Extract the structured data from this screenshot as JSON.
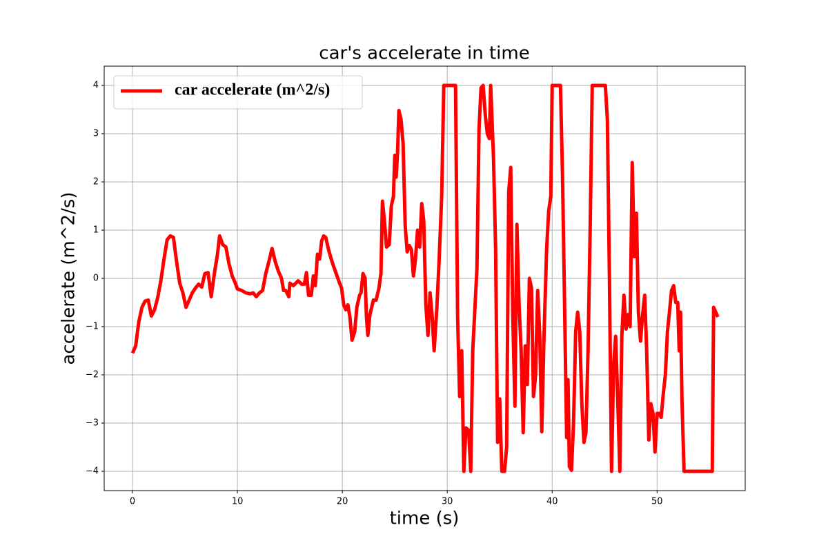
{
  "chart_data": {
    "type": "line",
    "title": "car's accelerate in time",
    "xlabel": "time (s)",
    "ylabel": "accelerate (m^2/s)",
    "x": [
      0,
      0.3,
      0.6,
      0.9,
      1.2,
      1.5,
      1.8,
      2.1,
      2.4,
      2.7,
      3.0,
      3.3,
      3.6,
      3.9,
      4.2,
      4.5,
      4.8,
      5.1,
      5.4,
      5.7,
      6.0,
      6.3,
      6.6,
      6.9,
      7.2,
      7.5,
      7.8,
      8.1,
      8.3,
      8.6,
      8.9,
      9.2,
      9.5,
      9.8,
      10.0,
      10.4,
      10.8,
      11.2,
      11.5,
      11.8,
      12.1,
      12.4,
      12.7,
      13.0,
      13.3,
      13.6,
      13.9,
      14.2,
      14.4,
      14.6,
      14.9,
      15.0,
      15.33,
      15.79,
      16.12,
      16.38,
      16.58,
      16.78,
      17.04,
      17.24,
      17.43,
      17.63,
      17.83,
      18.03,
      18.22,
      18.42,
      18.68,
      19.01,
      19.41,
      19.74,
      19.93,
      20.13,
      20.33,
      20.53,
      20.72,
      20.92,
      21.18,
      21.38,
      21.64,
      21.78,
      21.97,
      22.17,
      22.3,
      22.43,
      22.63,
      22.96,
      23.22,
      23.49,
      23.68,
      23.82,
      24.01,
      24.21,
      24.47,
      24.67,
      24.87,
      25.0,
      25.13,
      25.26,
      25.39,
      25.59,
      25.79,
      25.99,
      26.18,
      26.38,
      26.58,
      26.78,
      26.97,
      27.17,
      27.37,
      27.57,
      27.76,
      27.96,
      28.16,
      28.36,
      28.55,
      28.75,
      29.01,
      29.21,
      29.47,
      29.67,
      30.79,
      30.99,
      31.18,
      31.38,
      31.58,
      31.78,
      32.04,
      32.24,
      32.43,
      32.63,
      32.83,
      33.03,
      33.22,
      33.42,
      33.62,
      33.82,
      34.01,
      34.14,
      34.41,
      34.61,
      34.8,
      35.0,
      35.2,
      35.46,
      35.66,
      35.86,
      36.05,
      36.25,
      36.45,
      36.64,
      36.84,
      37.04,
      37.24,
      37.43,
      37.63,
      37.83,
      38.03,
      38.22,
      38.42,
      38.62,
      38.82,
      39.01,
      39.21,
      39.47,
      39.67,
      39.87,
      40.0,
      40.79,
      40.99,
      41.18,
      41.38,
      41.51,
      41.64,
      41.84,
      42.04,
      42.24,
      42.43,
      42.63,
      42.83,
      43.03,
      43.22,
      43.42,
      43.62,
      43.82,
      45.07,
      45.26,
      45.46,
      45.66,
      45.86,
      46.05,
      46.25,
      46.45,
      46.64,
      46.84,
      47.04,
      47.24,
      47.43,
      47.63,
      47.83,
      48.03,
      48.22,
      48.42,
      48.62,
      48.82,
      49.01,
      49.21,
      49.41,
      49.61,
      49.8,
      50.0,
      50.2,
      50.39,
      50.59,
      50.79,
      50.99,
      51.18,
      51.38,
      51.58,
      51.78,
      51.97,
      52.11,
      52.24,
      52.37,
      52.57,
      55.26,
      55.39,
      55.59,
      55.79
    ],
    "series": [
      {
        "name": "car accelerate (m^2/s)",
        "color": "#ff0000",
        "values": [
          -1.55,
          -1.4,
          -0.9,
          -0.6,
          -0.47,
          -0.45,
          -0.78,
          -0.65,
          -0.4,
          -0.05,
          0.4,
          0.8,
          0.88,
          0.85,
          0.35,
          -0.1,
          -0.3,
          -0.6,
          -0.45,
          -0.3,
          -0.2,
          -0.12,
          -0.18,
          0.1,
          0.12,
          -0.38,
          0.1,
          0.5,
          0.88,
          0.7,
          0.65,
          0.3,
          0.05,
          -0.1,
          -0.22,
          -0.25,
          -0.3,
          -0.32,
          -0.3,
          -0.38,
          -0.3,
          -0.25,
          0.1,
          0.35,
          0.62,
          0.35,
          0.15,
          0.0,
          -0.25,
          -0.25,
          -0.38,
          -0.1,
          -0.15,
          -0.05,
          -0.12,
          -0.12,
          0.12,
          -0.35,
          -0.35,
          0.05,
          -0.15,
          0.5,
          0.4,
          0.78,
          0.88,
          0.85,
          0.6,
          0.35,
          0.1,
          -0.1,
          -0.2,
          -0.55,
          -0.65,
          -0.55,
          -0.8,
          -1.28,
          -1.1,
          -0.6,
          -0.35,
          -0.3,
          0.1,
          0.0,
          -0.8,
          -1.18,
          -0.75,
          -0.45,
          -0.45,
          -0.2,
          0.1,
          1.6,
          1.2,
          0.65,
          0.7,
          1.5,
          1.7,
          2.55,
          2.1,
          2.6,
          3.48,
          3.3,
          2.8,
          1.1,
          0.55,
          0.68,
          0.6,
          0.05,
          0.4,
          1.0,
          0.65,
          1.55,
          1.2,
          -0.55,
          -1.18,
          -0.3,
          -0.75,
          -1.5,
          -0.6,
          0.3,
          1.7,
          4.0,
          4.0,
          -0.8,
          -2.45,
          -1.5,
          -4.0,
          -3.1,
          -3.15,
          -4.0,
          -1.5,
          -0.65,
          0.2,
          3.1,
          3.95,
          4.0,
          3.4,
          3.0,
          2.9,
          4.0,
          2.5,
          0.6,
          -3.4,
          -2.5,
          -4.0,
          -4.0,
          -3.5,
          1.8,
          2.3,
          -0.8,
          -2.65,
          1.12,
          -0.5,
          -1.5,
          -3.2,
          -1.4,
          -2.2,
          0.0,
          -0.2,
          -2.45,
          -2.0,
          -0.25,
          -1.2,
          -3.18,
          -1.3,
          0.6,
          1.4,
          1.7,
          4.0,
          4.0,
          2.1,
          -0.5,
          -3.3,
          -2.1,
          -3.9,
          -3.98,
          -3.0,
          -1.1,
          -0.7,
          -1.1,
          -2.6,
          -3.4,
          -3.2,
          -1.5,
          1.0,
          4.0,
          4.0,
          3.3,
          0.0,
          -4.0,
          -1.8,
          -1.2,
          -2.5,
          -4.0,
          -1.2,
          -0.35,
          -1.05,
          -0.75,
          -1.0,
          2.4,
          0.45,
          1.35,
          -0.7,
          -1.3,
          -0.75,
          -0.35,
          -1.5,
          -3.35,
          -2.6,
          -2.8,
          -3.6,
          -2.8,
          -2.8,
          -2.88,
          -2.4,
          -2.0,
          -1.1,
          -0.7,
          -0.25,
          -0.15,
          -0.5,
          -0.5,
          -1.5,
          -0.7,
          -2.5,
          -4.0,
          -4.0,
          -0.6,
          -0.7,
          -0.8
        ]
      }
    ],
    "xlim": [
      -2.7,
      58.4
    ],
    "ylim": [
      -4.4,
      4.4
    ],
    "xticks": [
      0,
      10,
      20,
      30,
      40,
      50
    ],
    "yticks": [
      {
        "value": -4,
        "label": "−4"
      },
      {
        "value": -3,
        "label": "−3"
      },
      {
        "value": -2,
        "label": "−2"
      },
      {
        "value": -1,
        "label": "−1"
      },
      0,
      1,
      2,
      3,
      4
    ],
    "grid": true,
    "legend": "upper left"
  }
}
